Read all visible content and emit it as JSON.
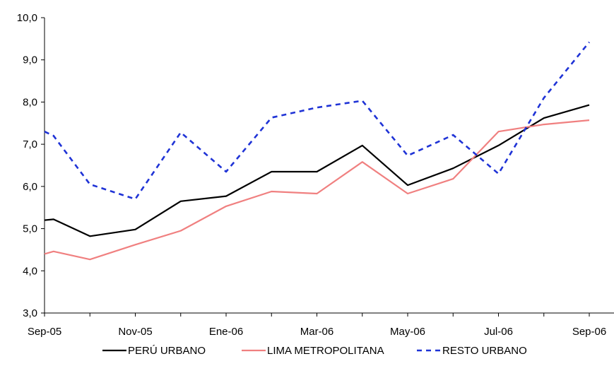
{
  "chart_data": {
    "type": "line",
    "title": "",
    "xlabel": "",
    "ylabel": "",
    "ylim": [
      3.0,
      10.0
    ],
    "y_ticks": [
      "3,0",
      "4,0",
      "5,0",
      "6,0",
      "7,0",
      "8,0",
      "9,0",
      "10,0"
    ],
    "y_tick_values": [
      3,
      4,
      5,
      6,
      7,
      8,
      9,
      10
    ],
    "x_labels": [
      {
        "label": "Sep-05",
        "index": 0
      },
      {
        "label": "Nov-05",
        "index": 2
      },
      {
        "label": "Ene-06",
        "index": 4
      },
      {
        "label": "Mar-06",
        "index": 6
      },
      {
        "label": "May-06",
        "index": 8
      },
      {
        "label": "Jul-06",
        "index": 10
      },
      {
        "label": "Sep-06",
        "index": 12
      }
    ],
    "grid": false,
    "legend_position": "bottom",
    "series": [
      {
        "name": "PERÚ URBANO",
        "color": "#000000",
        "dash": "solid",
        "points": [
          [
            0,
            5.2
          ],
          [
            0.2,
            5.22
          ],
          [
            1,
            4.82
          ],
          [
            2,
            4.98
          ],
          [
            3,
            5.65
          ],
          [
            4,
            5.77
          ],
          [
            5,
            6.35
          ],
          [
            6,
            6.35
          ],
          [
            7,
            6.97
          ],
          [
            8,
            6.03
          ],
          [
            9,
            6.43
          ],
          [
            10,
            6.97
          ],
          [
            11,
            7.62
          ],
          [
            12,
            7.93
          ]
        ]
      },
      {
        "name": "LIMA METROPOLITANA",
        "color": "#f08080",
        "dash": "solid",
        "points": [
          [
            0,
            4.4
          ],
          [
            0.2,
            4.46
          ],
          [
            1,
            4.27
          ],
          [
            2,
            4.62
          ],
          [
            3,
            4.95
          ],
          [
            4,
            5.53
          ],
          [
            5,
            5.88
          ],
          [
            6,
            5.83
          ],
          [
            7,
            6.58
          ],
          [
            8,
            5.83
          ],
          [
            9,
            6.18
          ],
          [
            10,
            7.3
          ],
          [
            11,
            7.47
          ],
          [
            12,
            7.57
          ]
        ]
      },
      {
        "name": "RESTO URBANO",
        "color": "#1f33d6",
        "dash": "dashed",
        "points": [
          [
            0,
            7.3
          ],
          [
            0.2,
            7.2
          ],
          [
            1,
            6.05
          ],
          [
            2,
            5.7
          ],
          [
            3,
            7.28
          ],
          [
            4,
            6.35
          ],
          [
            5,
            7.63
          ],
          [
            6,
            7.87
          ],
          [
            7,
            8.03
          ],
          [
            8,
            6.73
          ],
          [
            9,
            7.22
          ],
          [
            10,
            6.3
          ],
          [
            11,
            8.1
          ],
          [
            12,
            9.42
          ]
        ]
      }
    ]
  }
}
